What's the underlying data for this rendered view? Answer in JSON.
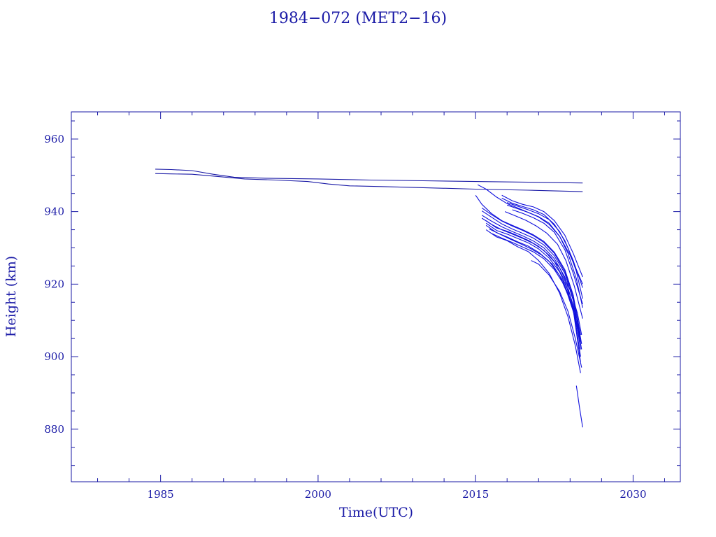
{
  "chart_data": {
    "type": "line",
    "title": "1984−072 (MET2−16)",
    "xlabel": "Time(UTC)",
    "ylabel": "Height (km)",
    "xlim": [
      1976.5,
      2034.5
    ],
    "ylim": [
      865.5,
      967.5
    ],
    "x_ticks": [
      1985,
      2000,
      2015,
      2030
    ],
    "x_tick_labels": [
      "1985",
      "2000",
      "2015",
      "2030"
    ],
    "y_ticks": [
      880,
      900,
      920,
      940,
      960
    ],
    "y_tick_labels": [
      "880",
      "900",
      "920",
      "940",
      "960"
    ],
    "grid": false,
    "legend": "none",
    "colors": {
      "axis": "#1a1aa6",
      "series": "#1010dd"
    },
    "series": [
      {
        "x": [
          1984.5,
          1986,
          1988,
          1990,
          1992,
          1995,
          2000,
          2005,
          2010,
          2015,
          2020,
          2025.2
        ],
        "y": [
          951.7,
          951.6,
          951.3,
          950.3,
          949.5,
          949.2,
          949.0,
          948.7,
          948.5,
          948.3,
          948.1,
          947.9
        ]
      },
      {
        "x": [
          1984.5,
          1986,
          1988,
          1990,
          1993,
          1996,
          1999,
          2001,
          2003,
          2006,
          2010,
          2015,
          2020,
          2025.2
        ],
        "y": [
          950.5,
          950.4,
          950.3,
          949.8,
          949.0,
          948.7,
          948.3,
          947.6,
          947.1,
          946.9,
          946.6,
          946.2,
          945.9,
          945.5
        ]
      },
      {
        "x": [
          2015.2,
          2016,
          2017,
          2018,
          2019,
          2020,
          2021,
          2022,
          2023,
          2024,
          2024.6,
          2025.2
        ],
        "y": [
          947.4,
          946.2,
          944.0,
          942.2,
          941.0,
          939.8,
          938.5,
          936.5,
          933.2,
          928.0,
          924.0,
          920.0
        ]
      },
      {
        "x": [
          2015.0,
          2015.6,
          2016.5,
          2017.5,
          2018.5,
          2019.5,
          2020.5,
          2021.5,
          2022.5,
          2023.5,
          2024.3,
          2025.0
        ],
        "y": [
          944.5,
          942.0,
          939.5,
          937.5,
          936.2,
          935.0,
          933.6,
          931.8,
          928.8,
          924.0,
          917.0,
          906.0
        ]
      },
      {
        "x": [
          2015.6,
          2016.5,
          2017.5,
          2018.5,
          2019.5,
          2020.5,
          2021.5,
          2022.5,
          2023.5,
          2024.3,
          2025.0
        ],
        "y": [
          941.0,
          939.2,
          937.4,
          936.0,
          934.8,
          933.4,
          931.5,
          928.5,
          923.5,
          916.5,
          904.0
        ]
      },
      {
        "x": [
          2015.6,
          2016.5,
          2017.5,
          2018.5,
          2019.5,
          2020.5,
          2021.5,
          2022.5,
          2023.5,
          2024.3,
          2025.0
        ],
        "y": [
          940.2,
          938.5,
          936.6,
          935.2,
          934.0,
          932.7,
          930.8,
          927.8,
          923.0,
          915.5,
          902.0
        ]
      },
      {
        "x": [
          2015.6,
          2016.5,
          2017.5,
          2018.5,
          2019.5,
          2020.5,
          2021.5,
          2022.5,
          2023.5,
          2024.3,
          2025.0
        ],
        "y": [
          939.0,
          937.4,
          935.8,
          934.5,
          933.3,
          931.9,
          930.0,
          927.0,
          922.0,
          914.0,
          900.0
        ]
      },
      {
        "x": [
          2015.6,
          2016.5,
          2017.5,
          2018.5,
          2019.5,
          2020.5,
          2021.5,
          2022.5,
          2023.5,
          2024.3,
          2025.0
        ],
        "y": [
          938.2,
          936.5,
          935.0,
          933.8,
          932.6,
          931.2,
          929.3,
          926.2,
          921.0,
          913.0,
          898.5
        ]
      },
      {
        "x": [
          2016.0,
          2017.0,
          2018.0,
          2019.0,
          2020.0,
          2021.0,
          2022.0,
          2023.0,
          2024.0,
          2024.7,
          2025.1
        ],
        "y": [
          937.5,
          935.5,
          934.6,
          933.4,
          932.1,
          930.4,
          928.0,
          924.5,
          918.5,
          912.0,
          906.0
        ]
      },
      {
        "x": [
          2016.0,
          2017.0,
          2018.0,
          2019.0,
          2020.0,
          2021.0,
          2022.0,
          2023.0,
          2024.0,
          2024.7,
          2025.1
        ],
        "y": [
          936.8,
          934.8,
          933.8,
          932.6,
          931.4,
          929.7,
          927.2,
          923.4,
          917.0,
          910.0,
          903.5
        ]
      },
      {
        "x": [
          2016.0,
          2017.0,
          2018.0,
          2019.0,
          2020.0,
          2021.0,
          2022.0,
          2023.0,
          2024.0,
          2024.7,
          2025.1
        ],
        "y": [
          936.2,
          934.2,
          933.0,
          931.7,
          930.5,
          928.8,
          926.3,
          922.4,
          915.6,
          908.5,
          902.0
        ]
      },
      {
        "x": [
          2016.3,
          2017.3,
          2018.3,
          2019.3,
          2020.3,
          2021.3,
          2022.3,
          2023.3,
          2024.2,
          2025.0
        ],
        "y": [
          935.2,
          933.8,
          932.4,
          931.1,
          929.7,
          928.0,
          925.5,
          921.0,
          914.5,
          905.0
        ]
      },
      {
        "x": [
          2016.5,
          2017.5,
          2018.5,
          2019.5,
          2020.5,
          2021.5,
          2022.5,
          2023.5,
          2024.3,
          2025.0
        ],
        "y": [
          934.0,
          932.7,
          931.5,
          930.2,
          928.9,
          927.0,
          924.0,
          919.5,
          912.5,
          904.0
        ]
      },
      {
        "x": [
          2016.0,
          2017.0,
          2018.0,
          2019.0,
          2020.0,
          2021.0,
          2022.0,
          2023.0,
          2023.8,
          2024.5,
          2025.0
        ],
        "y": [
          935.0,
          933.0,
          932.0,
          930.3,
          929.0,
          926.5,
          923.0,
          917.5,
          911.0,
          903.0,
          895.5
        ]
      },
      {
        "x": [
          2017.5,
          2018.5,
          2019.5,
          2020.5,
          2021.5,
          2022.5,
          2023.5,
          2024.3,
          2025.2
        ],
        "y": [
          944.5,
          943.0,
          942.0,
          941.3,
          940.0,
          937.5,
          933.5,
          928.5,
          922.0
        ]
      },
      {
        "x": [
          2017.5,
          2018.5,
          2019.5,
          2020.5,
          2021.5,
          2022.5,
          2023.5,
          2024.3,
          2025.2
        ],
        "y": [
          943.7,
          942.3,
          941.4,
          940.5,
          939.2,
          936.5,
          932.0,
          926.5,
          919.0
        ]
      },
      {
        "x": [
          2018.0,
          2019.0,
          2020.0,
          2021.0,
          2022.0,
          2023.0,
          2023.8,
          2024.6,
          2025.2
        ],
        "y": [
          942.5,
          941.5,
          940.5,
          939.4,
          937.8,
          934.5,
          930.0,
          923.5,
          916.0
        ]
      },
      {
        "x": [
          2018.0,
          2019.0,
          2020.0,
          2021.0,
          2022.0,
          2023.0,
          2023.8,
          2024.6,
          2025.2
        ],
        "y": [
          941.8,
          940.8,
          939.8,
          938.6,
          936.8,
          933.2,
          928.5,
          921.5,
          913.5
        ]
      },
      {
        "x": [
          2018.5,
          2019.5,
          2020.5,
          2021.5,
          2022.5,
          2023.5,
          2024.3,
          2025.2
        ],
        "y": [
          940.5,
          939.5,
          938.3,
          936.8,
          934.3,
          929.5,
          923.0,
          914.5
        ]
      },
      {
        "x": [
          2017.8,
          2018.8,
          2019.8,
          2020.8,
          2021.8,
          2022.8,
          2023.6,
          2024.4,
          2025.2
        ],
        "y": [
          940.0,
          938.8,
          937.6,
          936.0,
          934.0,
          931.0,
          926.5,
          919.5,
          910.5
        ]
      },
      {
        "x": [
          2020.3,
          2021.0,
          2022.0,
          2023.0,
          2023.8,
          2024.5,
          2025.1
        ],
        "y": [
          926.5,
          925.5,
          922.5,
          918.0,
          912.5,
          905.0,
          897.0
        ]
      },
      {
        "x": [
          2024.6,
          2024.9,
          2025.2
        ],
        "y": [
          892.0,
          886.0,
          880.5
        ]
      }
    ]
  }
}
